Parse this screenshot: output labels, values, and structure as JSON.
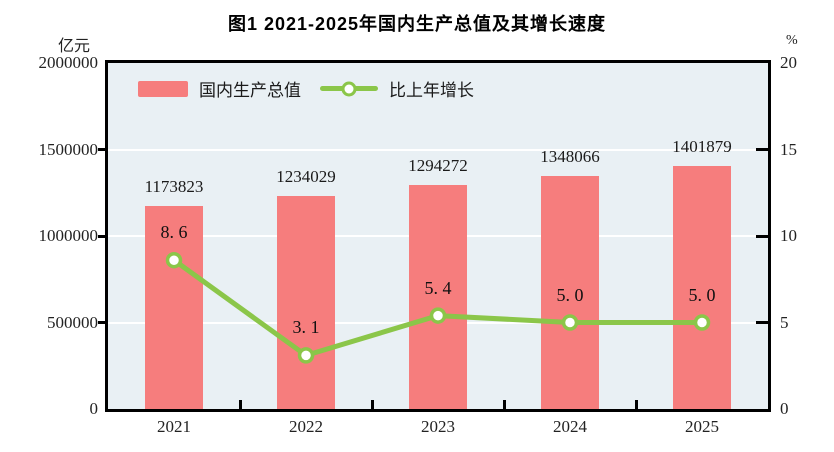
{
  "chart_data": {
    "type": "combo-bar-line",
    "title": "图1  2021-2025年国内生产总值及其增长速度",
    "categories": [
      "2021",
      "2022",
      "2023",
      "2024",
      "2025"
    ],
    "series": [
      {
        "name": "国内生产总值",
        "type": "bar",
        "axis": "left",
        "color": "#f67d7d",
        "values": [
          1173823,
          1234029,
          1294272,
          1348066,
          1401879
        ],
        "labels": [
          "1173823",
          "1234029",
          "1294272",
          "1348066",
          "1401879"
        ]
      },
      {
        "name": "比上年增长",
        "type": "line",
        "axis": "right",
        "color": "#8bc649",
        "marker_fill": "#ffffff",
        "values": [
          8.6,
          3.1,
          5.4,
          5.0,
          5.0
        ],
        "labels": [
          "8. 6",
          "3. 1",
          "5. 4",
          "5. 0",
          "5. 0"
        ]
      }
    ],
    "left_axis": {
      "unit": "亿元",
      "min": 0,
      "max": 2000000,
      "ticks": [
        "2000000",
        "1500000",
        "1000000",
        "500000",
        "0"
      ]
    },
    "right_axis": {
      "unit": "%",
      "min": 0,
      "max": 20,
      "ticks": [
        "20",
        "15",
        "10",
        "5",
        "0"
      ]
    },
    "grid": true,
    "legend_position": "inside-top-left",
    "colors": {
      "plot_bg": "#e9f0f4",
      "grid": "#ffffff",
      "axis": "#000000",
      "text": "#1a1a1a"
    }
  }
}
